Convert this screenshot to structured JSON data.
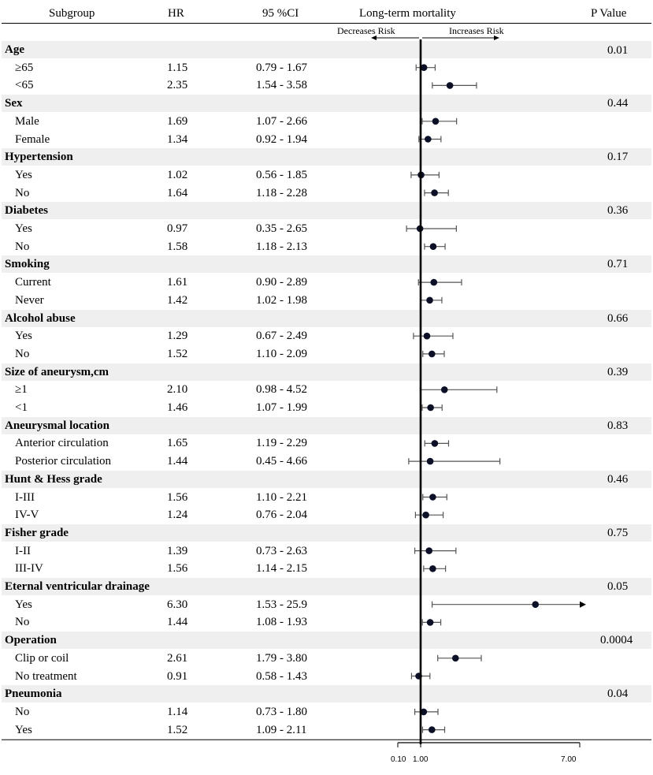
{
  "chart_data": {
    "type": "forest",
    "title": "Long-term mortality",
    "columns": {
      "subgroup": "Subgroup",
      "hr": "HR",
      "ci": "95 %CI",
      "plot": "Long-term mortality",
      "p": "P Value"
    },
    "direction_labels": {
      "left": "Decreases Risk",
      "right": "Increases Risk"
    },
    "x_ticks": [
      "0.10",
      "1.00",
      "7.00"
    ],
    "x_range": [
      0.1,
      7.0
    ],
    "reference_line": 1.0,
    "groups": [
      {
        "label": "Age",
        "p": "0.01",
        "rows": [
          {
            "label": "≥65",
            "hr": 1.15,
            "hr_text": "1.15",
            "lo": 0.79,
            "hi": 1.67,
            "ci_text": "0.79 - 1.67"
          },
          {
            "label": "<65",
            "hr": 2.35,
            "hr_text": "2.35",
            "lo": 1.54,
            "hi": 3.58,
            "ci_text": "1.54 - 3.58"
          }
        ]
      },
      {
        "label": "Sex",
        "p": "0.44",
        "rows": [
          {
            "label": "Male",
            "hr": 1.69,
            "hr_text": "1.69",
            "lo": 1.07,
            "hi": 2.66,
            "ci_text": "1.07 - 2.66"
          },
          {
            "label": "Female",
            "hr": 1.34,
            "hr_text": "1.34",
            "lo": 0.92,
            "hi": 1.94,
            "ci_text": "0.92 - 1.94"
          }
        ]
      },
      {
        "label": "Hypertension",
        "p": "0.17",
        "rows": [
          {
            "label": "Yes",
            "hr": 1.02,
            "hr_text": "1.02",
            "lo": 0.56,
            "hi": 1.85,
            "ci_text": "0.56 - 1.85"
          },
          {
            "label": "No",
            "hr": 1.64,
            "hr_text": "1.64",
            "lo": 1.18,
            "hi": 2.28,
            "ci_text": "1.18 - 2.28"
          }
        ]
      },
      {
        "label": "Diabetes",
        "p": "0.36",
        "rows": [
          {
            "label": "Yes",
            "hr": 0.97,
            "hr_text": "0.97",
            "lo": 0.35,
            "hi": 2.65,
            "ci_text": "0.35 - 2.65"
          },
          {
            "label": "No",
            "hr": 1.58,
            "hr_text": "1.58",
            "lo": 1.18,
            "hi": 2.13,
            "ci_text": "1.18 - 2.13"
          }
        ]
      },
      {
        "label": "Smoking",
        "p": "0.71",
        "rows": [
          {
            "label": "Current",
            "hr": 1.61,
            "hr_text": "1.61",
            "lo": 0.9,
            "hi": 2.89,
            "ci_text": "0.90 - 2.89"
          },
          {
            "label": "Never",
            "hr": 1.42,
            "hr_text": "1.42",
            "lo": 1.02,
            "hi": 1.98,
            "ci_text": "1.02 - 1.98"
          }
        ]
      },
      {
        "label": "Alcohol abuse",
        "p": "0.66",
        "rows": [
          {
            "label": "Yes",
            "hr": 1.29,
            "hr_text": "1.29",
            "lo": 0.67,
            "hi": 2.49,
            "ci_text": "0.67 - 2.49"
          },
          {
            "label": "No",
            "hr": 1.52,
            "hr_text": "1.52",
            "lo": 1.1,
            "hi": 2.09,
            "ci_text": "1.10 - 2.09"
          }
        ]
      },
      {
        "label": "Size of aneurysm,cm",
        "p": "0.39",
        "rows": [
          {
            "label": "≥1",
            "hr": 2.1,
            "hr_text": "2.10",
            "lo": 0.98,
            "hi": 4.52,
            "ci_text": "0.98 - 4.52"
          },
          {
            "label": "<1",
            "hr": 1.46,
            "hr_text": "1.46",
            "lo": 1.07,
            "hi": 1.99,
            "ci_text": "1.07 - 1.99"
          }
        ]
      },
      {
        "label": "Aneurysmal location",
        "p": "0.83",
        "rows": [
          {
            "label": "Anterior circulation",
            "hr": 1.65,
            "hr_text": "1.65",
            "lo": 1.19,
            "hi": 2.29,
            "ci_text": "1.19 - 2.29"
          },
          {
            "label": "Posterior circulation",
            "hr": 1.44,
            "hr_text": "1.44",
            "lo": 0.45,
            "hi": 4.66,
            "ci_text": "0.45 - 4.66"
          }
        ]
      },
      {
        "label": "Hunt & Hess grade",
        "p": "0.46",
        "rows": [
          {
            "label": "I-III",
            "hr": 1.56,
            "hr_text": "1.56",
            "lo": 1.1,
            "hi": 2.21,
            "ci_text": "1.10 - 2.21"
          },
          {
            "label": "IV-V",
            "hr": 1.24,
            "hr_text": "1.24",
            "lo": 0.76,
            "hi": 2.04,
            "ci_text": "0.76 - 2.04"
          }
        ]
      },
      {
        "label": "Fisher grade",
        "p": "0.75",
        "rows": [
          {
            "label": "I-II",
            "hr": 1.39,
            "hr_text": "1.39",
            "lo": 0.73,
            "hi": 2.63,
            "ci_text": "0.73 - 2.63"
          },
          {
            "label": "III-IV",
            "hr": 1.56,
            "hr_text": "1.56",
            "lo": 1.14,
            "hi": 2.15,
            "ci_text": "1.14 - 2.15"
          }
        ]
      },
      {
        "label": "Eternal ventricular drainage",
        "p": "0.05",
        "rows": [
          {
            "label": "Yes",
            "hr": 6.3,
            "hr_text": "6.30",
            "lo": 1.53,
            "hi": 25.9,
            "ci_text": "1.53 - 25.9",
            "truncated": true
          },
          {
            "label": "No",
            "hr": 1.44,
            "hr_text": "1.44",
            "lo": 1.08,
            "hi": 1.93,
            "ci_text": "1.08 - 1.93"
          }
        ]
      },
      {
        "label": "Operation",
        "p": "0.0004",
        "rows": [
          {
            "label": "Clip or coil",
            "hr": 2.61,
            "hr_text": "2.61",
            "lo": 1.79,
            "hi": 3.8,
            "ci_text": "1.79 - 3.80"
          },
          {
            "label": "No treatment",
            "hr": 0.91,
            "hr_text": "0.91",
            "lo": 0.58,
            "hi": 1.43,
            "ci_text": "0.58 - 1.43"
          }
        ]
      },
      {
        "label": "Pneumonia",
        "p": "0.04",
        "rows": [
          {
            "label": "No",
            "hr": 1.14,
            "hr_text": "1.14",
            "lo": 0.73,
            "hi": 1.8,
            "ci_text": "0.73 - 1.80"
          },
          {
            "label": "Yes",
            "hr": 1.52,
            "hr_text": "1.52",
            "lo": 1.09,
            "hi": 2.11,
            "ci_text": "1.09 - 2.11"
          }
        ]
      }
    ]
  }
}
